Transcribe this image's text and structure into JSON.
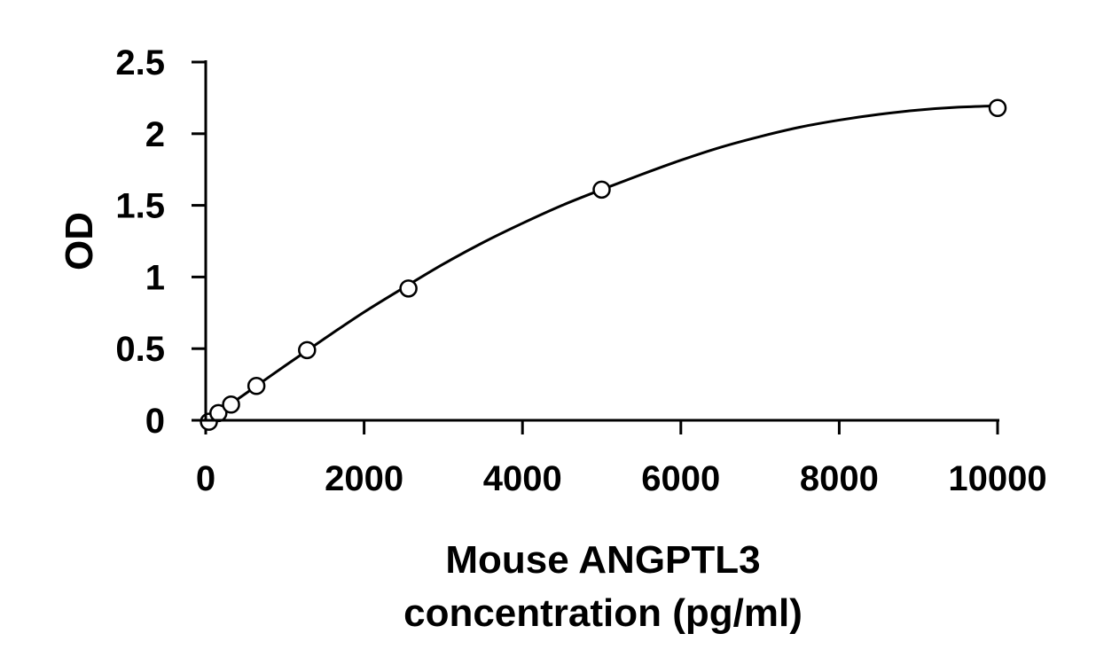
{
  "chart_data": {
    "type": "scatter",
    "title": "",
    "xlabel_lines": [
      "Mouse ANGPTL3",
      "concentration (pg/ml)"
    ],
    "ylabel": "OD",
    "xlim": [
      0,
      10000
    ],
    "ylim": [
      0,
      2.5
    ],
    "x_ticks": [
      0,
      2000,
      4000,
      6000,
      8000,
      10000
    ],
    "y_ticks": [
      0,
      0.5,
      1,
      1.5,
      2,
      2.5
    ],
    "x_tick_labels": [
      "0",
      "2000",
      "4000",
      "6000",
      "8000",
      "10000"
    ],
    "y_tick_labels": [
      "0",
      "0.5",
      "1",
      "1.5",
      "2",
      "2.5"
    ],
    "grid": false,
    "legend": "none",
    "series": [
      {
        "marker": "open-circle",
        "x": [
          40,
          160,
          320,
          640,
          1280,
          2560,
          5000,
          10000
        ],
        "y": [
          -0.01,
          0.05,
          0.11,
          0.24,
          0.49,
          0.92,
          1.61,
          2.18
        ]
      }
    ],
    "fit_curve": {
      "type": "smooth",
      "x": [
        0,
        250,
        500,
        1000,
        1500,
        2000,
        2500,
        3000,
        3500,
        4000,
        4500,
        5000,
        5500,
        6000,
        6500,
        7000,
        7500,
        8000,
        8500,
        9000,
        9500,
        10000
      ],
      "y": [
        0.0,
        0.09,
        0.185,
        0.38,
        0.57,
        0.755,
        0.925,
        1.09,
        1.24,
        1.375,
        1.5,
        1.61,
        1.715,
        1.815,
        1.905,
        1.98,
        2.045,
        2.095,
        2.135,
        2.165,
        2.185,
        2.195
      ]
    }
  }
}
